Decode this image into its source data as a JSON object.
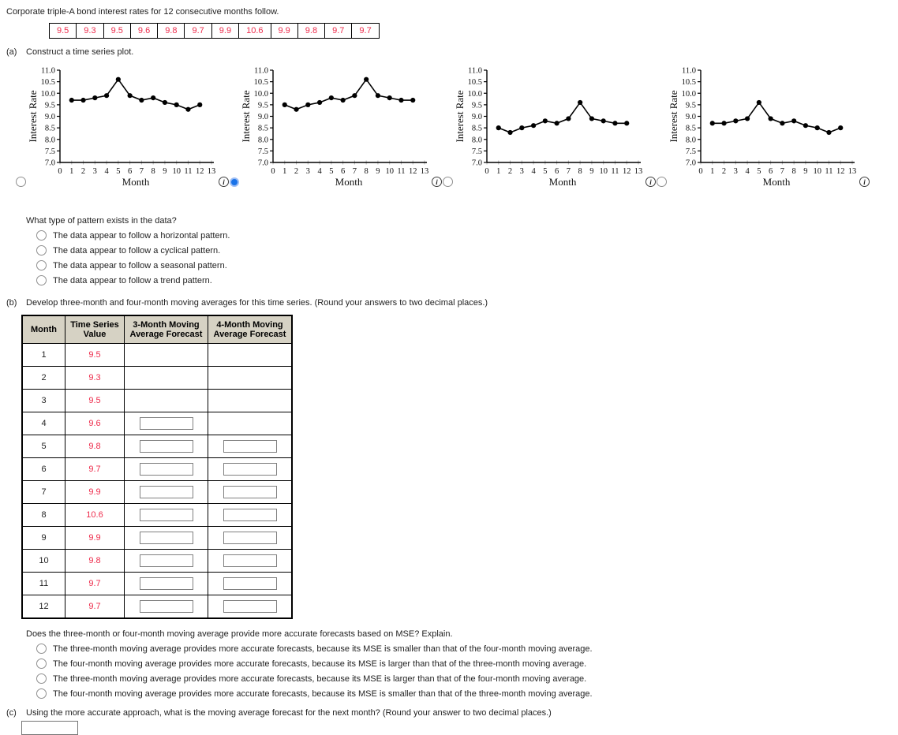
{
  "title": "Corporate triple-A bond interest rates for 12 consecutive months follow.",
  "data_strip": [
    "9.5",
    "9.3",
    "9.5",
    "9.6",
    "9.8",
    "9.7",
    "9.9",
    "10.6",
    "9.9",
    "9.8",
    "9.7",
    "9.7"
  ],
  "colors": {
    "value_red": "#ee2c4c",
    "selected_radio_blue": "#1a73e8",
    "radio_ring_blue": "#9dbef5",
    "table_header_tan": "#d6d2c4"
  },
  "icons": {
    "info": "i"
  },
  "part_a": {
    "label": "(a)",
    "prompt": "Construct a time series plot.",
    "selected_chart_index": 1,
    "pattern_question": {
      "prompt": "What type of pattern exists in the data?",
      "options": [
        {
          "label": "The data appear to follow a horizontal pattern.",
          "selected": false
        },
        {
          "label": "The data appear to follow a cyclical pattern.",
          "selected": false
        },
        {
          "label": "The data appear to follow a seasonal pattern.",
          "selected": false
        },
        {
          "label": "The data appear to follow a trend pattern.",
          "selected": false
        }
      ]
    }
  },
  "chart_data": [
    {
      "type": "line",
      "title": "",
      "xlabel": "Month",
      "ylabel": "Interest Rate",
      "xlim": [
        0,
        13
      ],
      "ylim": [
        7.0,
        11.0
      ],
      "ytick_step": 0.5,
      "grid": false,
      "x": [
        1,
        2,
        3,
        4,
        5,
        6,
        7,
        8,
        9,
        10,
        11,
        12
      ],
      "values": [
        9.7,
        9.7,
        9.8,
        9.9,
        10.6,
        9.9,
        9.7,
        9.8,
        9.6,
        9.5,
        9.3,
        9.5
      ],
      "selected": false
    },
    {
      "type": "line",
      "title": "",
      "xlabel": "Month",
      "ylabel": "Interest Rate",
      "xlim": [
        0,
        13
      ],
      "ylim": [
        7.0,
        11.0
      ],
      "ytick_step": 0.5,
      "grid": false,
      "x": [
        1,
        2,
        3,
        4,
        5,
        6,
        7,
        8,
        9,
        10,
        11,
        12
      ],
      "values": [
        9.5,
        9.3,
        9.5,
        9.6,
        9.8,
        9.7,
        9.9,
        10.6,
        9.9,
        9.8,
        9.7,
        9.7
      ],
      "selected": true
    },
    {
      "type": "line",
      "title": "",
      "xlabel": "Month",
      "ylabel": "Interest Rate",
      "xlim": [
        0,
        13
      ],
      "ylim": [
        7.0,
        11.0
      ],
      "ytick_step": 0.5,
      "grid": false,
      "x": [
        1,
        2,
        3,
        4,
        5,
        6,
        7,
        8,
        9,
        10,
        11,
        12
      ],
      "values": [
        8.5,
        8.3,
        8.5,
        8.6,
        8.8,
        8.7,
        8.9,
        9.6,
        8.9,
        8.8,
        8.7,
        8.7
      ],
      "selected": false
    },
    {
      "type": "line",
      "title": "",
      "xlabel": "Month",
      "ylabel": "Interest Rate",
      "xlim": [
        0,
        13
      ],
      "ylim": [
        7.0,
        11.0
      ],
      "ytick_step": 0.5,
      "grid": false,
      "x": [
        1,
        2,
        3,
        4,
        5,
        6,
        7,
        8,
        9,
        10,
        11,
        12
      ],
      "values": [
        8.7,
        8.7,
        8.8,
        8.9,
        9.6,
        8.9,
        8.7,
        8.8,
        8.6,
        8.5,
        8.3,
        8.5
      ],
      "selected": false
    }
  ],
  "part_b": {
    "label": "(b)",
    "prompt": "Develop three-month and four-month moving averages for this time series. (Round your answers to two decimal places.)",
    "table": {
      "headers": [
        "Month",
        "Time Series Value",
        "3-Month Moving Average Forecast",
        "4-Month Moving Average Forecast"
      ],
      "rows": [
        {
          "month": "1",
          "value": "9.5",
          "ma3_input": false,
          "ma4_input": false
        },
        {
          "month": "2",
          "value": "9.3",
          "ma3_input": false,
          "ma4_input": false
        },
        {
          "month": "3",
          "value": "9.5",
          "ma3_input": false,
          "ma4_input": false
        },
        {
          "month": "4",
          "value": "9.6",
          "ma3_input": true,
          "ma4_input": false
        },
        {
          "month": "5",
          "value": "9.8",
          "ma3_input": true,
          "ma4_input": true
        },
        {
          "month": "6",
          "value": "9.7",
          "ma3_input": true,
          "ma4_input": true
        },
        {
          "month": "7",
          "value": "9.9",
          "ma3_input": true,
          "ma4_input": true
        },
        {
          "month": "8",
          "value": "10.6",
          "ma3_input": true,
          "ma4_input": true
        },
        {
          "month": "9",
          "value": "9.9",
          "ma3_input": true,
          "ma4_input": true
        },
        {
          "month": "10",
          "value": "9.8",
          "ma3_input": true,
          "ma4_input": true
        },
        {
          "month": "11",
          "value": "9.7",
          "ma3_input": true,
          "ma4_input": true
        },
        {
          "month": "12",
          "value": "9.7",
          "ma3_input": true,
          "ma4_input": true
        }
      ],
      "input_values": {
        "ma3": [
          "",
          "",
          "",
          "",
          "",
          "",
          "",
          "",
          ""
        ],
        "ma4": [
          "",
          "",
          "",
          "",
          "",
          "",
          "",
          ""
        ]
      }
    },
    "mse_question": {
      "prompt": "Does the three-month or four-month moving average provide more accurate forecasts based on MSE? Explain.",
      "options": [
        {
          "label": "The three-month moving average provides more accurate forecasts, because its MSE is smaller than that of the four-month moving average.",
          "selected": false
        },
        {
          "label": "The four-month moving average provides more accurate forecasts, because its MSE is larger than that of the three-month moving average.",
          "selected": false
        },
        {
          "label": "The three-month moving average provides more accurate forecasts, because its MSE is larger than that of the four-month moving average.",
          "selected": false
        },
        {
          "label": "The four-month moving average provides more accurate forecasts, because its MSE is smaller than that of the three-month moving average.",
          "selected": false
        }
      ]
    }
  },
  "part_c": {
    "label": "(c)",
    "prompt": "Using the more accurate approach, what is the moving average forecast for the next month? (Round your answer to two decimal places.)",
    "answer_value": ""
  }
}
